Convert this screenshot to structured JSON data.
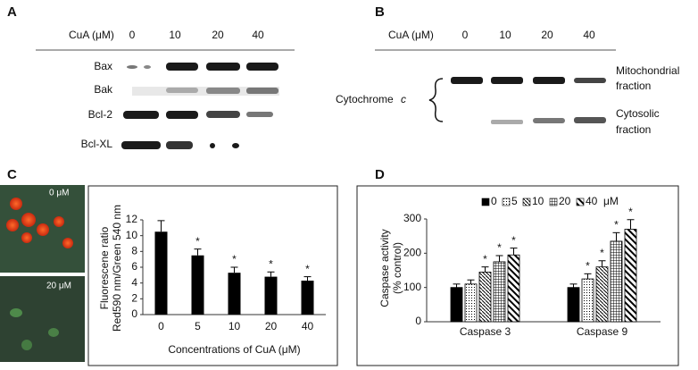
{
  "panel_a": {
    "label": "A",
    "treatment": "CuA (μM)",
    "doses": [
      "0",
      "10",
      "20",
      "40"
    ],
    "proteins": [
      "Bax",
      "Bak",
      "Bcl-2",
      "Bcl-XL"
    ]
  },
  "panel_b": {
    "label": "B",
    "treatment": "CuA (μM)",
    "doses": [
      "0",
      "10",
      "20",
      "40"
    ],
    "protein": [
      "Cytochrome",
      "c"
    ],
    "fractions": [
      [
        "Mitochondrial",
        "fraction"
      ],
      [
        "Cytosolic",
        "fraction"
      ]
    ]
  },
  "panel_c": {
    "label": "C",
    "images": [
      "0 μM",
      "20 μM"
    ]
  },
  "panel_d": {
    "label": "D"
  },
  "chart_data": [
    {
      "type": "bar",
      "y_label": [
        "Fluorescene ratio",
        "Red590 nm/Green 540 nm"
      ],
      "x_label": "Concentrations of CuA (μM)",
      "categories": [
        "0",
        "5",
        "10",
        "20",
        "40"
      ],
      "values": [
        10.5,
        7.5,
        5.3,
        4.8,
        4.3
      ],
      "errors": [
        1.4,
        0.8,
        0.7,
        0.6,
        0.5
      ],
      "annotations": [
        null,
        "*",
        "*",
        "*",
        "*"
      ],
      "color": "#000000",
      "ylim": [
        0,
        12
      ],
      "yticks": [
        0,
        2,
        4,
        6,
        8,
        10,
        12
      ]
    },
    {
      "type": "grouped_bar",
      "y_label": [
        "Caspase activity",
        "(% control)"
      ],
      "categories": [
        "Caspase 3",
        "Caspase 9"
      ],
      "legend_unit": "μM",
      "series": [
        {
          "name": "0",
          "fill": "solid",
          "values": [
            100,
            100
          ],
          "errors": [
            10,
            10
          ],
          "annotations": [
            null,
            null
          ]
        },
        {
          "name": "5",
          "fill": "dots",
          "values": [
            110,
            125
          ],
          "errors": [
            12,
            15
          ],
          "annotations": [
            null,
            "*"
          ]
        },
        {
          "name": "10",
          "fill": "hatch",
          "values": [
            145,
            160
          ],
          "errors": [
            15,
            18
          ],
          "annotations": [
            "*",
            "*"
          ]
        },
        {
          "name": "20",
          "fill": "grid",
          "values": [
            175,
            235
          ],
          "errors": [
            18,
            25
          ],
          "annotations": [
            "*",
            "*"
          ]
        },
        {
          "name": "40",
          "fill": "wide",
          "values": [
            195,
            270
          ],
          "errors": [
            20,
            28
          ],
          "annotations": [
            "*",
            "*"
          ]
        }
      ],
      "ylim": [
        0,
        300
      ],
      "yticks": [
        0,
        100,
        200,
        300
      ]
    }
  ]
}
